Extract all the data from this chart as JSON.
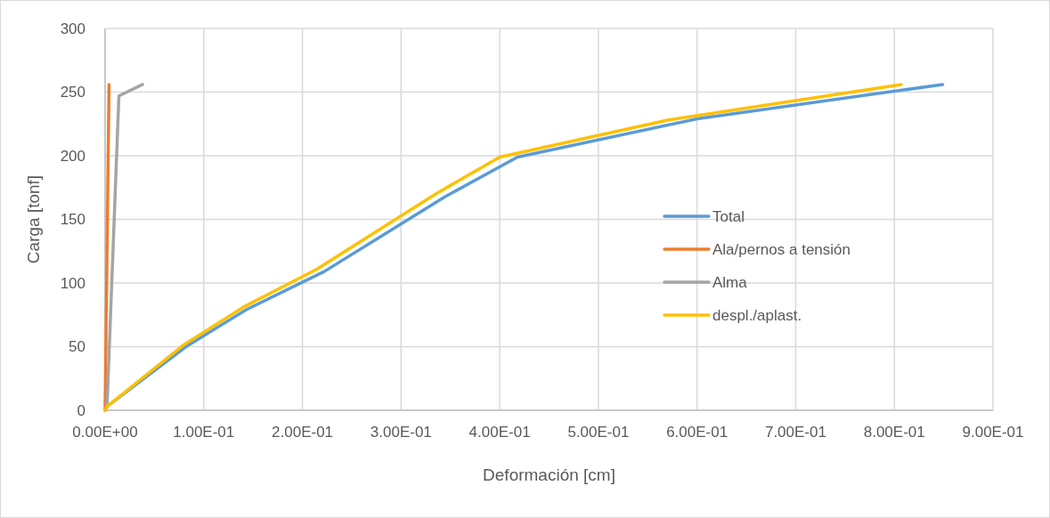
{
  "chart_data": {
    "type": "line",
    "xlabel": "Deformación [cm]",
    "ylabel": "Carga [tonf]",
    "xlim": [
      0,
      0.9
    ],
    "xticks": [
      {
        "value": 0,
        "label": "0.00E+00"
      },
      {
        "value": 0.1,
        "label": "1.00E-01"
      },
      {
        "value": 0.2,
        "label": "2.00E-01"
      },
      {
        "value": 0.3,
        "label": "3.00E-01"
      },
      {
        "value": 0.4,
        "label": "4.00E-01"
      },
      {
        "value": 0.5,
        "label": "5.00E-01"
      },
      {
        "value": 0.6,
        "label": "6.00E-01"
      },
      {
        "value": 0.7,
        "label": "7.00E-01"
      },
      {
        "value": 0.8,
        "label": "8.00E-01"
      },
      {
        "value": 0.9,
        "label": "9.00E-01"
      }
    ],
    "ylim": [
      0,
      300
    ],
    "yticks": [
      0,
      50,
      100,
      150,
      200,
      250,
      300
    ],
    "grid": true,
    "legend": "right",
    "marker": "none",
    "series": [
      {
        "name": "Total",
        "color": "#5b9bd5",
        "x": [
          0,
          0.002,
          0.082,
          0.143,
          0.222,
          0.345,
          0.418,
          0.6,
          0.849
        ],
        "values": [
          0,
          3,
          50,
          79,
          109,
          168,
          199,
          229,
          256
        ]
      },
      {
        "name": "Ala/pernos a tensión",
        "color": "#ed7d31",
        "x": [
          0,
          0.004
        ],
        "values": [
          0,
          256
        ]
      },
      {
        "name": "Alma",
        "color": "#a5a5a5",
        "x": [
          0,
          0.002,
          0.014,
          0.038
        ],
        "values": [
          0,
          3,
          247,
          256
        ]
      },
      {
        "name": "despl./aplast.",
        "color": "#ffc000",
        "x": [
          0,
          0.002,
          0.079,
          0.14,
          0.215,
          0.335,
          0.4,
          0.57,
          0.807
        ],
        "values": [
          0,
          3,
          51,
          81,
          111,
          170,
          199,
          228,
          256
        ]
      }
    ]
  }
}
